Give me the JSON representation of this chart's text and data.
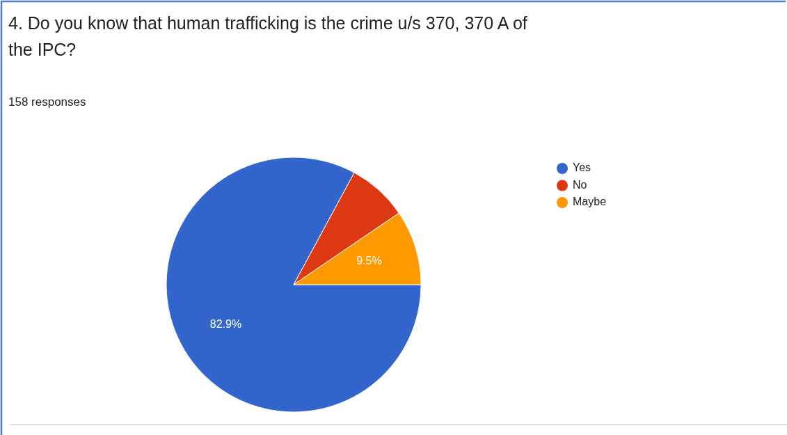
{
  "chart_data": {
    "type": "pie",
    "title": "4. Do you know that human trafficking is the crime u/s 370, 370 A of the IPC?",
    "subtitle": "158 responses",
    "categories": [
      "Yes",
      "No",
      "Maybe"
    ],
    "values": [
      82.9,
      7.6,
      9.5
    ],
    "colors": [
      "#3366cc",
      "#dc3912",
      "#ff9900"
    ],
    "value_labels": [
      "82.9%",
      null,
      "9.5%"
    ],
    "legend": "right"
  }
}
